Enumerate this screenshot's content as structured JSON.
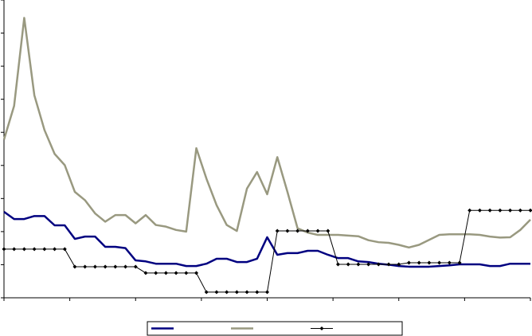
{
  "chart_data": {
    "type": "line",
    "x": [
      0,
      2,
      4,
      6,
      8,
      10,
      12,
      14,
      16,
      18,
      20,
      22,
      24,
      26,
      28,
      30,
      32,
      34,
      36,
      38,
      40,
      42,
      44,
      46,
      48,
      50,
      52,
      54,
      56,
      58,
      60,
      62,
      64,
      66,
      68,
      70,
      72,
      74,
      76,
      78,
      80,
      82,
      84,
      86,
      88,
      90,
      92,
      94,
      96,
      98,
      100,
      102,
      104
    ],
    "xlim": [
      0,
      104
    ],
    "xticks": [
      0,
      13,
      26,
      39,
      52,
      65,
      78,
      91,
      104
    ],
    "ylim": [
      0,
      9
    ],
    "yticks": [
      0,
      1,
      2,
      3,
      4,
      5,
      6,
      7,
      8,
      9
    ],
    "series": [
      {
        "color": "#000080",
        "marker": false,
        "values": [
          2.6,
          2.38,
          2.38,
          2.47,
          2.47,
          2.19,
          2.19,
          1.78,
          1.85,
          1.85,
          1.54,
          1.54,
          1.5,
          1.13,
          1.1,
          1.03,
          1.03,
          1.03,
          0.96,
          0.96,
          1.03,
          1.18,
          1.18,
          1.08,
          1.08,
          1.18,
          1.83,
          1.3,
          1.35,
          1.35,
          1.42,
          1.42,
          1.3,
          1.2,
          1.2,
          1.1,
          1.08,
          1.03,
          1.0,
          0.96,
          0.94,
          0.94,
          0.94,
          0.96,
          0.98,
          1.01,
          1.01,
          1.01,
          0.96,
          0.96,
          1.03,
          1.03,
          1.03
        ]
      },
      {
        "color": "#999980",
        "marker": false,
        "values": [
          4.78,
          5.8,
          8.46,
          6.12,
          5.07,
          4.35,
          4.01,
          3.2,
          2.95,
          2.55,
          2.3,
          2.5,
          2.5,
          2.25,
          2.5,
          2.2,
          2.15,
          2.05,
          2.0,
          4.52,
          3.6,
          2.8,
          2.2,
          2.02,
          3.3,
          3.8,
          3.13,
          4.25,
          3.2,
          2.1,
          1.97,
          1.9,
          1.9,
          1.9,
          1.88,
          1.86,
          1.74,
          1.68,
          1.66,
          1.6,
          1.52,
          1.6,
          1.75,
          1.9,
          1.92,
          1.92,
          1.92,
          1.9,
          1.85,
          1.82,
          1.83,
          2.05,
          2.36
        ]
      },
      {
        "color": "#000000",
        "marker": true,
        "values": [
          1.47,
          1.47,
          1.47,
          1.47,
          1.47,
          1.47,
          1.47,
          0.94,
          0.94,
          0.94,
          0.94,
          0.94,
          0.94,
          0.94,
          0.75,
          0.75,
          0.75,
          0.75,
          0.75,
          0.75,
          0.17,
          0.17,
          0.17,
          0.17,
          0.17,
          0.17,
          0.17,
          2.02,
          2.02,
          2.02,
          2.02,
          2.02,
          2.02,
          1.01,
          1.01,
          1.01,
          1.01,
          1.01,
          1.01,
          1.01,
          1.06,
          1.06,
          1.06,
          1.06,
          1.06,
          1.06,
          2.64,
          2.64,
          2.64,
          2.64,
          2.64,
          2.64,
          2.64
        ]
      }
    ]
  }
}
